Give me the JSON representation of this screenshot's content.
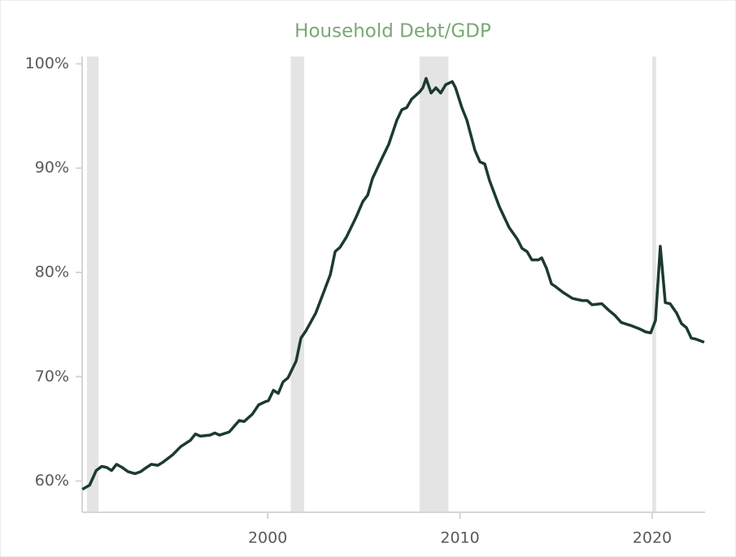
{
  "chart_data": {
    "type": "line",
    "title": "Household Debt/GDP",
    "x": [
      1990.36,
      1990.74,
      1991.08,
      1991.37,
      1991.63,
      1991.88,
      1992.14,
      1992.43,
      1992.73,
      1993.1,
      1993.4,
      1993.7,
      1993.95,
      1994.29,
      1994.55,
      1995.05,
      1995.48,
      1995.98,
      1996.24,
      1996.5,
      1997.0,
      1997.25,
      1997.5,
      1998.0,
      1998.52,
      1998.77,
      1999.2,
      1999.53,
      1999.87,
      2000.04,
      2000.3,
      2000.55,
      2000.8,
      2001.06,
      2001.48,
      2001.73,
      2001.99,
      2002.5,
      2002.83,
      2003.26,
      2003.51,
      2003.76,
      2004.1,
      2004.6,
      2004.95,
      2005.2,
      2005.45,
      2005.96,
      2006.3,
      2006.72,
      2006.98,
      2007.23,
      2007.48,
      2007.9,
      2008.07,
      2008.24,
      2008.5,
      2008.75,
      2009.0,
      2009.26,
      2009.6,
      2009.77,
      2010.1,
      2010.36,
      2010.78,
      2011.04,
      2011.29,
      2011.54,
      2012.05,
      2012.56,
      2012.98,
      2013.23,
      2013.49,
      2013.74,
      2014.08,
      2014.25,
      2014.5,
      2014.76,
      2015.0,
      2015.35,
      2015.6,
      2015.86,
      2016.36,
      2016.62,
      2016.87,
      2017.38,
      2017.72,
      2018.05,
      2018.39,
      2018.9,
      2019.32,
      2019.66,
      2019.92,
      2020.17,
      2020.42,
      2020.68,
      2020.93,
      2021.27,
      2021.52,
      2021.78,
      2022.03,
      2022.28,
      2022.7
    ],
    "series": [
      {
        "name": "Household Debt/GDP",
        "color": "#1c3a30",
        "values": [
          59.2,
          59.6,
          61.0,
          61.4,
          61.3,
          61.0,
          61.6,
          61.3,
          60.9,
          60.7,
          60.9,
          61.3,
          61.6,
          61.5,
          61.8,
          62.5,
          63.3,
          63.9,
          64.5,
          64.3,
          64.4,
          64.6,
          64.4,
          64.7,
          65.8,
          65.7,
          66.4,
          67.3,
          67.6,
          67.7,
          68.7,
          68.4,
          69.5,
          69.9,
          71.5,
          73.7,
          74.4,
          76.1,
          77.7,
          79.8,
          82.0,
          82.4,
          83.4,
          85.3,
          86.8,
          87.4,
          89.0,
          91.0,
          92.3,
          94.6,
          95.6,
          95.8,
          96.6,
          97.3,
          97.7,
          98.6,
          97.2,
          97.7,
          97.2,
          98.0,
          98.3,
          97.7,
          95.8,
          94.6,
          91.7,
          90.6,
          90.4,
          88.8,
          86.3,
          84.3,
          83.2,
          82.3,
          82.0,
          81.2,
          81.2,
          81.4,
          80.4,
          78.9,
          78.6,
          78.1,
          77.8,
          77.5,
          77.3,
          77.3,
          76.9,
          77.0,
          76.4,
          75.9,
          75.2,
          74.9,
          74.6,
          74.3,
          74.2,
          75.4,
          82.5,
          77.1,
          77.0,
          76.1,
          75.1,
          74.7,
          73.7,
          73.6,
          73.3
        ]
      }
    ],
    "recessions": [
      [
        1990.6,
        1991.2
      ],
      [
        2001.2,
        2001.9
      ],
      [
        2007.9,
        2009.4
      ],
      [
        2020.0,
        2020.2
      ]
    ],
    "recession_color": "#e4e4e4",
    "xlim": [
      1990.35,
      2022.75
    ],
    "xticks": [
      2000,
      2010,
      2020
    ],
    "ylim": [
      57,
      100.7
    ],
    "yticks": [
      {
        "value": 60,
        "label": "60%"
      },
      {
        "value": 70,
        "label": "70%"
      },
      {
        "value": 80,
        "label": "80%"
      },
      {
        "value": 90,
        "label": "90%"
      },
      {
        "value": 100,
        "label": "100%"
      }
    ],
    "grid": false
  }
}
